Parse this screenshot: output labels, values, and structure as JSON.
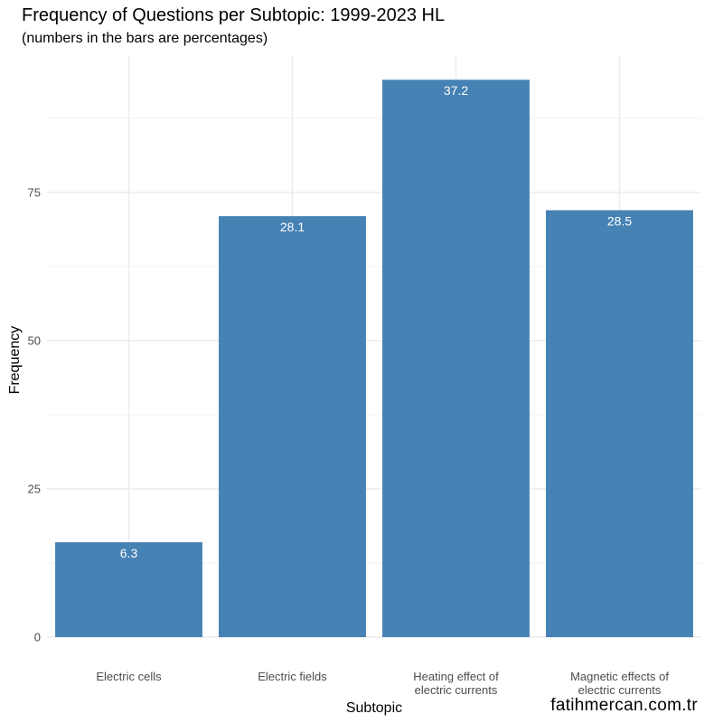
{
  "title": "Frequency of Questions per Subtopic: 1999-2023 HL",
  "subtitle": "(numbers in the bars are percentages)",
  "watermark": "fatihmercan.com.tr",
  "colors": {
    "bar": "#4682b4",
    "grid": "#ebebeb",
    "bar_label": "#ffffff",
    "tick_label": "#4d4d4d"
  },
  "chart_data": {
    "type": "bar",
    "categories": [
      [
        "Electric cells"
      ],
      [
        "Electric fields"
      ],
      [
        "Heating effect of",
        "electric currents"
      ],
      [
        "Magnetic effects of",
        "electric currents"
      ]
    ],
    "values": [
      16,
      71,
      94,
      72
    ],
    "bar_labels": [
      "6.3",
      "28.1",
      "37.2",
      "28.5"
    ],
    "xlabel": "Subtopic",
    "ylabel": "Frequency",
    "ylim": [
      0,
      98
    ],
    "yticks": [
      0,
      25,
      50,
      75
    ],
    "grid": true
  }
}
